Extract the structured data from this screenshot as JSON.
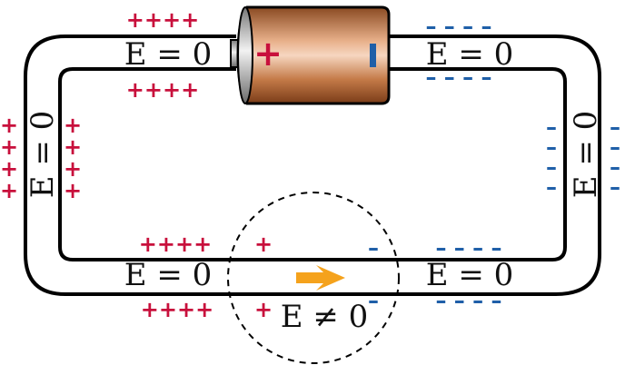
{
  "labels": {
    "top_left": "E = 0",
    "top_right": "E = 0",
    "left": "E = 0",
    "right": "E = 0",
    "bottom_left": "E = 0",
    "bottom_right": "E = 0",
    "resistor_region": "E ≠ 0"
  },
  "charges": {
    "positive_symbol": "++++",
    "negative_symbol": "– – – –",
    "single_positive": "+",
    "single_negative": "–"
  },
  "battery": {
    "positive_terminal": "+",
    "negative_terminal": "–"
  },
  "colors": {
    "wire": "#000000",
    "positive": "#c8103c",
    "negative": "#1f5fa8",
    "arrow": "#f5a21c",
    "battery_body": "#c97a45"
  },
  "icons": {
    "arrow": "current-direction-arrow-icon",
    "circle": "dashed-region-circle"
  }
}
